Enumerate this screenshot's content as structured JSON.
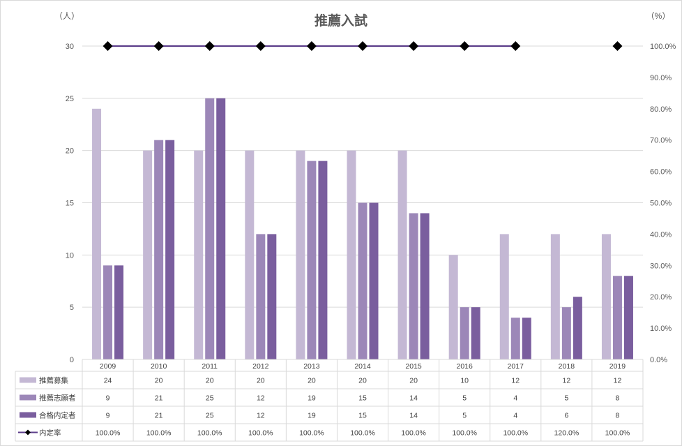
{
  "chart_data": {
    "type": "bar",
    "title": "推薦入試",
    "y_left_unit": "（人）",
    "y_right_unit": "（%）",
    "categories": [
      "2009",
      "2010",
      "2011",
      "2012",
      "2013",
      "2014",
      "2015",
      "2016",
      "2017",
      "2018",
      "2019"
    ],
    "ylim": [
      0,
      30
    ],
    "y_ticks": [
      "0",
      "5",
      "10",
      "15",
      "20",
      "25",
      "30"
    ],
    "y2lim": [
      0,
      100
    ],
    "y2_ticks": [
      "0.0%",
      "10.0%",
      "20.0%",
      "30.0%",
      "40.0%",
      "50.0%",
      "60.0%",
      "70.0%",
      "80.0%",
      "90.0%",
      "100.0%"
    ],
    "grid": true,
    "legend": "data-table",
    "series": [
      {
        "name": "推薦募集",
        "type": "bar",
        "color": "#c4b8d4",
        "values": [
          24,
          20,
          20,
          20,
          20,
          20,
          20,
          10,
          12,
          12,
          12
        ]
      },
      {
        "name": "推薦志願者",
        "type": "bar",
        "color": "#9c87b8",
        "values": [
          9,
          21,
          25,
          12,
          19,
          15,
          14,
          5,
          4,
          5,
          8
        ]
      },
      {
        "name": "合格内定者",
        "type": "bar",
        "color": "#7a5e9e",
        "values": [
          9,
          21,
          25,
          12,
          19,
          15,
          14,
          5,
          4,
          6,
          8
        ]
      },
      {
        "name": "内定率",
        "type": "line",
        "axis": "right",
        "color": "#5b3d8a",
        "marker_color": "#000000",
        "values": [
          100,
          100,
          100,
          100,
          100,
          100,
          100,
          100,
          100,
          120,
          100
        ]
      }
    ],
    "table_rows": [
      {
        "label": "推薦募集",
        "cells": [
          "24",
          "20",
          "20",
          "20",
          "20",
          "20",
          "20",
          "10",
          "12",
          "12",
          "12"
        ]
      },
      {
        "label": "推薦志願者",
        "cells": [
          "9",
          "21",
          "25",
          "12",
          "19",
          "15",
          "14",
          "5",
          "4",
          "5",
          "8"
        ]
      },
      {
        "label": "合格内定者",
        "cells": [
          "9",
          "21",
          "25",
          "12",
          "19",
          "15",
          "14",
          "5",
          "4",
          "6",
          "8"
        ]
      },
      {
        "label": "内定率",
        "cells": [
          "100.0%",
          "100.0%",
          "100.0%",
          "100.0%",
          "100.0%",
          "100.0%",
          "100.0%",
          "100.0%",
          "100.0%",
          "120.0%",
          "100.0%"
        ]
      }
    ]
  }
}
